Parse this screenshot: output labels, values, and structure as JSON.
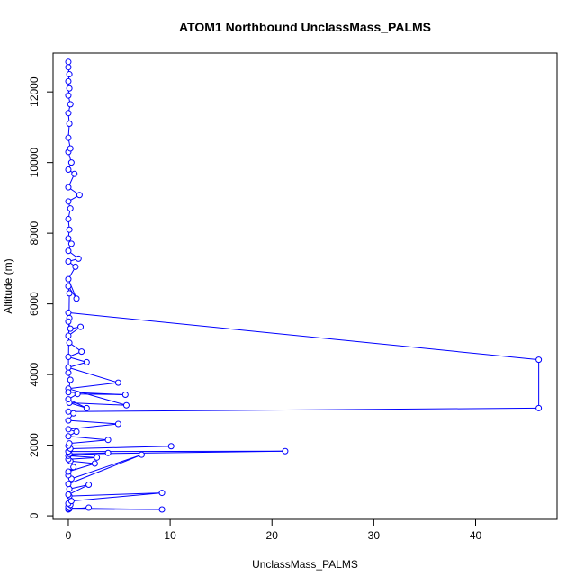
{
  "chart_data": {
    "type": "line",
    "title": "ATOM1 Northbound UnclassMass_PALMS",
    "xlabel": "UnclassMass_PALMS",
    "ylabel": "Altitude (m)",
    "xlim": [
      -1.5,
      48.0
    ],
    "ylim": [
      -100,
      13100
    ],
    "xticks": [
      0,
      10,
      20,
      30,
      40
    ],
    "yticks": [
      0,
      2000,
      4000,
      6000,
      8000,
      10000,
      12000
    ],
    "grid": false,
    "legend": "none",
    "series": [
      {
        "color": "#0000ff",
        "marker": "open-circle",
        "points": [
          [
            0.0,
            180
          ],
          [
            0.1,
            200
          ],
          [
            2.0,
            230
          ],
          [
            0.0,
            190
          ],
          [
            9.2,
            180
          ],
          [
            0.1,
            220
          ],
          [
            0.0,
            260
          ],
          [
            0.2,
            310
          ],
          [
            0.0,
            350
          ],
          [
            0.3,
            420
          ],
          [
            9.2,
            650
          ],
          [
            0.1,
            560
          ],
          [
            0.0,
            600
          ],
          [
            2.0,
            880
          ],
          [
            0.1,
            760
          ],
          [
            0.0,
            900
          ],
          [
            7.2,
            1730
          ],
          [
            0.3,
            1050
          ],
          [
            0.0,
            1150
          ],
          [
            0.5,
            1380
          ],
          [
            0.0,
            1250
          ],
          [
            2.6,
            1480
          ],
          [
            0.2,
            1550
          ],
          [
            0.0,
            1600
          ],
          [
            2.8,
            1650
          ],
          [
            0.0,
            1700
          ],
          [
            3.9,
            1780
          ],
          [
            0.1,
            1750
          ],
          [
            21.3,
            1830
          ],
          [
            0.0,
            1820
          ],
          [
            0.2,
            1900
          ],
          [
            10.1,
            1970
          ],
          [
            0.0,
            1980
          ],
          [
            0.1,
            2050
          ],
          [
            3.9,
            2150
          ],
          [
            0.0,
            2250
          ],
          [
            0.8,
            2380
          ],
          [
            0.0,
            2450
          ],
          [
            4.9,
            2600
          ],
          [
            0.0,
            2700
          ],
          [
            0.5,
            2900
          ],
          [
            0.0,
            2950
          ],
          [
            46.2,
            3050
          ],
          [
            46.2,
            4420
          ],
          [
            0.0,
            5750
          ],
          [
            0.1,
            5600
          ],
          [
            0.0,
            5500
          ],
          [
            0.2,
            5300
          ],
          [
            1.2,
            5350
          ],
          [
            0.0,
            5100
          ],
          [
            0.1,
            4900
          ],
          [
            1.3,
            4650
          ],
          [
            0.0,
            4500
          ],
          [
            1.8,
            4350
          ],
          [
            0.0,
            4200
          ],
          [
            4.9,
            3770
          ],
          [
            0.0,
            3600
          ],
          [
            5.7,
            3130
          ],
          [
            0.1,
            3200
          ],
          [
            1.8,
            3050
          ],
          [
            0.0,
            3300
          ],
          [
            0.9,
            3450
          ],
          [
            5.6,
            3430
          ],
          [
            0.0,
            3500
          ],
          [
            0.2,
            3850
          ],
          [
            0.0,
            4050
          ],
          [
            0.1,
            6300
          ],
          [
            0.0,
            6500
          ],
          [
            0.8,
            6150
          ],
          [
            0.0,
            6700
          ],
          [
            0.7,
            7050
          ],
          [
            0.0,
            7200
          ],
          [
            1.0,
            7280
          ],
          [
            0.0,
            7500
          ],
          [
            0.3,
            7700
          ],
          [
            0.0,
            7850
          ],
          [
            0.1,
            8100
          ],
          [
            0.0,
            8400
          ],
          [
            0.2,
            8700
          ],
          [
            0.0,
            8900
          ],
          [
            1.1,
            9080
          ],
          [
            0.0,
            9300
          ],
          [
            0.6,
            9680
          ],
          [
            0.0,
            9800
          ],
          [
            0.3,
            10000
          ],
          [
            0.0,
            10300
          ],
          [
            0.2,
            10400
          ],
          [
            0.0,
            10700
          ],
          [
            0.1,
            11100
          ],
          [
            0.0,
            11400
          ],
          [
            0.2,
            11650
          ],
          [
            0.0,
            11900
          ],
          [
            0.1,
            12100
          ],
          [
            0.0,
            12300
          ],
          [
            0.1,
            12500
          ],
          [
            0.0,
            12700
          ],
          [
            0.0,
            12850
          ]
        ]
      }
    ]
  }
}
